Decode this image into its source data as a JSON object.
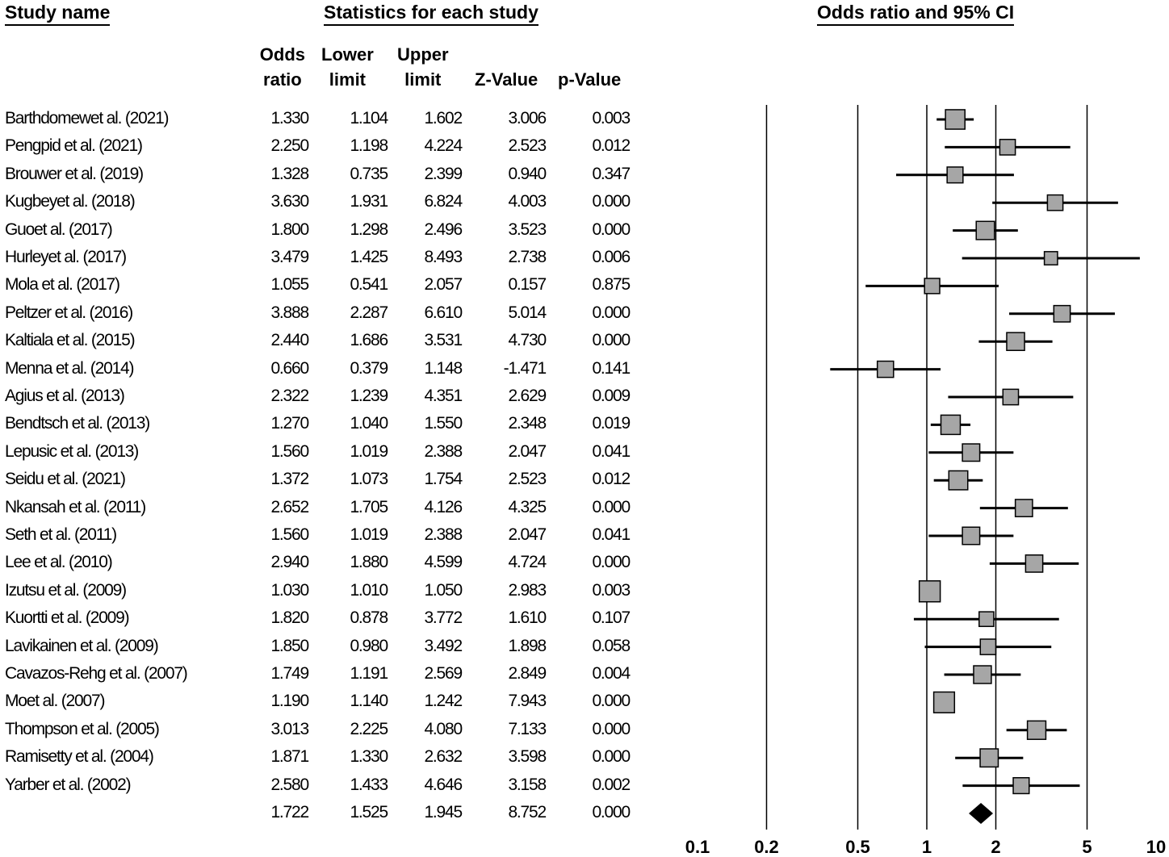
{
  "headers": {
    "study_name": "Study name",
    "statistics": "Statistics for each study",
    "odds_ratio_ci": "Odds ratio and 95% CI"
  },
  "columns": {
    "or": [
      "Odds",
      "ratio"
    ],
    "lower": [
      "Lower",
      "limit"
    ],
    "upper": [
      "Upper",
      "limit"
    ],
    "z": "Z-Value",
    "p": "p-Value"
  },
  "chart_data": {
    "type": "forest",
    "title": "Odds ratio and 95% CI",
    "xscale": "log",
    "xlim": [
      0.1,
      10
    ],
    "xticks": [
      "0.1",
      "0.2",
      "0.5",
      "1",
      "2",
      "5",
      "10"
    ],
    "studies": [
      {
        "name": "Barthdomewet al. (2021)",
        "or": "1.330",
        "lower": "1.104",
        "upper": "1.602",
        "z": "3.006",
        "p": "0.003"
      },
      {
        "name": "Pengpid et al. (2021)",
        "or": "2.250",
        "lower": "1.198",
        "upper": "4.224",
        "z": "2.523",
        "p": "0.012"
      },
      {
        "name": "Brouwer et al. (2019)",
        "or": "1.328",
        "lower": "0.735",
        "upper": "2.399",
        "z": "0.940",
        "p": "0.347"
      },
      {
        "name": "Kugbeyet al. (2018)",
        "or": "3.630",
        "lower": "1.931",
        "upper": "6.824",
        "z": "4.003",
        "p": "0.000"
      },
      {
        "name": "Guoet al. (2017)",
        "or": "1.800",
        "lower": "1.298",
        "upper": "2.496",
        "z": "3.523",
        "p": "0.000"
      },
      {
        "name": "Hurleyet al. (2017)",
        "or": "3.479",
        "lower": "1.425",
        "upper": "8.493",
        "z": "2.738",
        "p": "0.006"
      },
      {
        "name": "Mola et al. (2017)",
        "or": "1.055",
        "lower": "0.541",
        "upper": "2.057",
        "z": "0.157",
        "p": "0.875"
      },
      {
        "name": "Peltzer et al. (2016)",
        "or": "3.888",
        "lower": "2.287",
        "upper": "6.610",
        "z": "5.014",
        "p": "0.000"
      },
      {
        "name": "Kaltiala et al. (2015)",
        "or": "2.440",
        "lower": "1.686",
        "upper": "3.531",
        "z": "4.730",
        "p": "0.000"
      },
      {
        "name": "Menna et al. (2014)",
        "or": "0.660",
        "lower": "0.379",
        "upper": "1.148",
        "z": "-1.471",
        "p": "0.141"
      },
      {
        "name": "Agius et al. (2013)",
        "or": "2.322",
        "lower": "1.239",
        "upper": "4.351",
        "z": "2.629",
        "p": "0.009"
      },
      {
        "name": "Bendtsch et al. (2013)",
        "or": "1.270",
        "lower": "1.040",
        "upper": "1.550",
        "z": "2.348",
        "p": "0.019"
      },
      {
        "name": "Lepusic et al. (2013)",
        "or": "1.560",
        "lower": "1.019",
        "upper": "2.388",
        "z": "2.047",
        "p": "0.041"
      },
      {
        "name": "Seidu et al. (2021)",
        "or": "1.372",
        "lower": "1.073",
        "upper": "1.754",
        "z": "2.523",
        "p": "0.012"
      },
      {
        "name": "Nkansah et al. (2011)",
        "or": "2.652",
        "lower": "1.705",
        "upper": "4.126",
        "z": "4.325",
        "p": "0.000"
      },
      {
        "name": "Seth et al. (2011)",
        "or": "1.560",
        "lower": "1.019",
        "upper": "2.388",
        "z": "2.047",
        "p": "0.041"
      },
      {
        "name": "Lee et al. (2010)",
        "or": "2.940",
        "lower": "1.880",
        "upper": "4.599",
        "z": "4.724",
        "p": "0.000"
      },
      {
        "name": "Izutsu et al. (2009)",
        "or": "1.030",
        "lower": "1.010",
        "upper": "1.050",
        "z": "2.983",
        "p": "0.003"
      },
      {
        "name": "Kuortti et al. (2009)",
        "or": "1.820",
        "lower": "0.878",
        "upper": "3.772",
        "z": "1.610",
        "p": "0.107"
      },
      {
        "name": "Lavikainen et al. (2009)",
        "or": "1.850",
        "lower": "0.980",
        "upper": "3.492",
        "z": "1.898",
        "p": "0.058"
      },
      {
        "name": "Cavazos-Rehg et al. (2007)",
        "or": "1.749",
        "lower": "1.191",
        "upper": "2.569",
        "z": "2.849",
        "p": "0.004"
      },
      {
        "name": "Moet al. (2007)",
        "or": "1.190",
        "lower": "1.140",
        "upper": "1.242",
        "z": "7.943",
        "p": "0.000"
      },
      {
        "name": "Thompson et al. (2005)",
        "or": "3.013",
        "lower": "2.225",
        "upper": "4.080",
        "z": "7.133",
        "p": "0.000"
      },
      {
        "name": "Ramisetty et al. (2004)",
        "or": "1.871",
        "lower": "1.330",
        "upper": "2.632",
        "z": "3.598",
        "p": "0.000"
      },
      {
        "name": "Yarber et al. (2002)",
        "or": "2.580",
        "lower": "1.433",
        "upper": "4.646",
        "z": "3.158",
        "p": "0.002"
      }
    ],
    "summary": {
      "name": "",
      "or": "1.722",
      "lower": "1.525",
      "upper": "1.945",
      "z": "8.752",
      "p": "0.000"
    }
  }
}
